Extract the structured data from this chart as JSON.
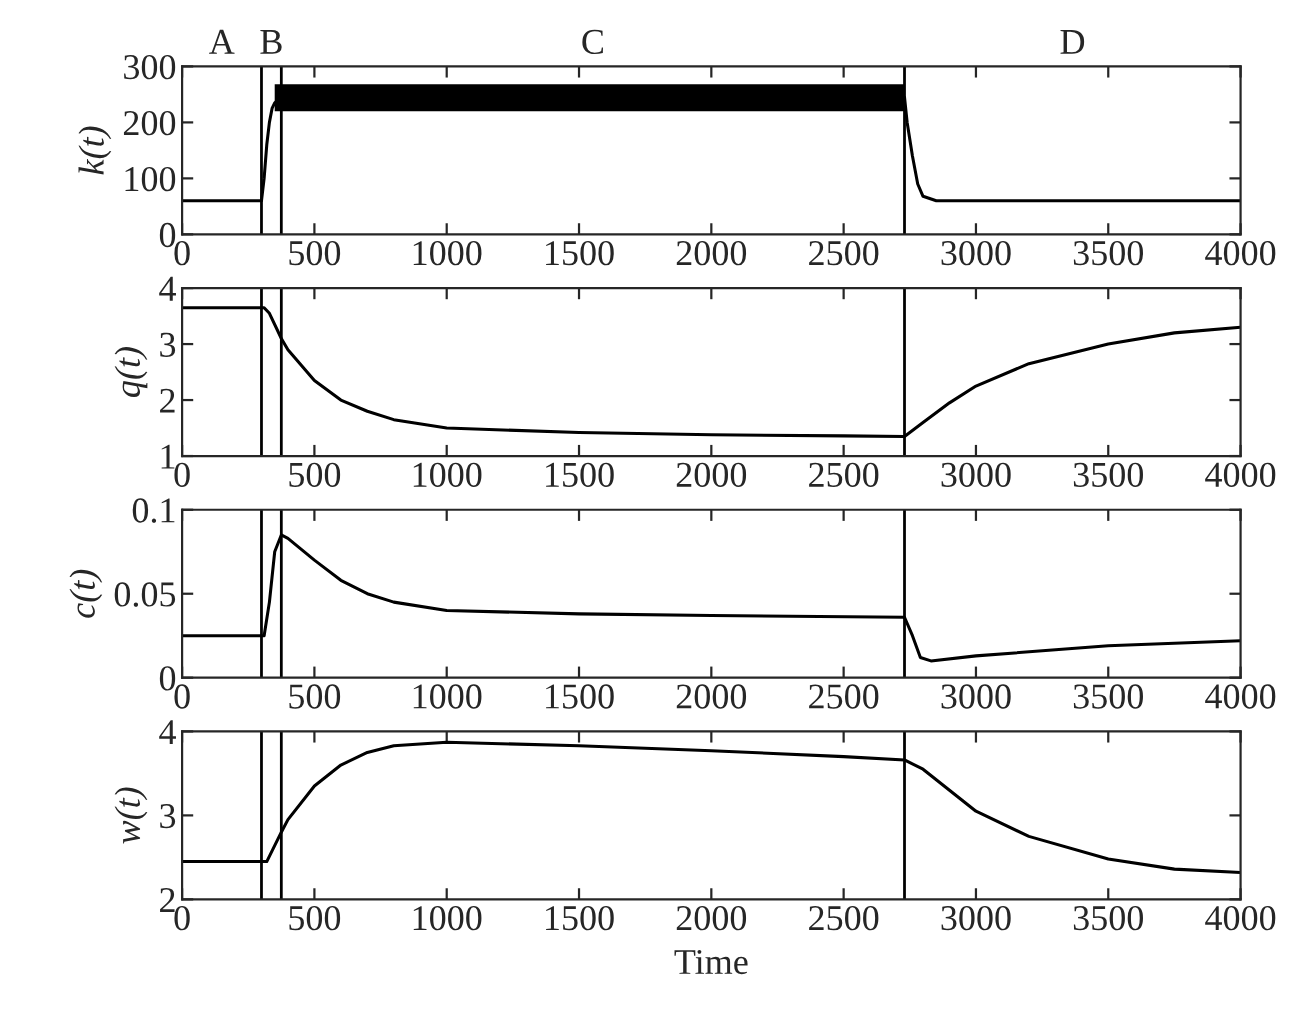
{
  "chart_data": [
    {
      "type": "line",
      "ylabel": "k(t)",
      "annotations": [
        "A",
        "B",
        "C",
        "D"
      ],
      "series": [
        {
          "color": "#000000",
          "x": [
            0,
            300,
            310,
            320,
            330,
            340,
            350,
            375,
            500,
            1000,
            1500,
            2000,
            2500,
            2720,
            2730,
            2740,
            2760,
            2780,
            2800,
            2850,
            3000,
            4000
          ],
          "values": [
            60,
            60,
            100,
            160,
            200,
            225,
            235,
            245,
            245,
            245,
            245,
            245,
            245,
            245,
            245,
            200,
            140,
            90,
            68,
            60,
            60,
            60
          ],
          "lower": [
            null,
            null,
            null,
            null,
            null,
            null,
            220,
            220,
            220,
            220,
            220,
            220,
            220,
            220,
            220,
            null,
            null,
            null,
            null,
            null,
            null,
            null
          ],
          "upper": [
            null,
            null,
            null,
            null,
            null,
            null,
            268,
            268,
            268,
            268,
            268,
            268,
            268,
            268,
            268,
            null,
            null,
            null,
            null,
            null,
            null,
            null
          ]
        }
      ],
      "xlim": [
        0,
        4000
      ],
      "xticks": [
        0,
        500,
        1000,
        1500,
        2000,
        2500,
        3000,
        3500,
        4000
      ],
      "ylim": [
        0,
        300
      ],
      "yticks": [
        0,
        100,
        200,
        300
      ],
      "ref_lines": [
        {
          "axis": "x",
          "value": 300
        },
        {
          "axis": "x",
          "value": 375
        },
        {
          "axis": "x",
          "value": 2730
        }
      ]
    },
    {
      "type": "line",
      "ylabel": "q(t)",
      "series": [
        {
          "color": "#000000",
          "x": [
            0,
            310,
            330,
            375,
            400,
            500,
            600,
            700,
            800,
            1000,
            1500,
            2000,
            2500,
            2730,
            2800,
            2900,
            3000,
            3200,
            3500,
            3750,
            4000
          ],
          "values": [
            3.65,
            3.65,
            3.55,
            3.1,
            2.9,
            2.35,
            2.0,
            1.8,
            1.65,
            1.5,
            1.42,
            1.38,
            1.36,
            1.35,
            1.6,
            1.95,
            2.25,
            2.65,
            3.0,
            3.2,
            3.3
          ]
        }
      ],
      "xlim": [
        0,
        4000
      ],
      "xticks": [
        0,
        500,
        1000,
        1500,
        2000,
        2500,
        3000,
        3500,
        4000
      ],
      "ylim": [
        1,
        4
      ],
      "yticks": [
        1,
        2,
        3,
        4
      ],
      "ref_lines": [
        {
          "axis": "x",
          "value": 300
        },
        {
          "axis": "x",
          "value": 375
        },
        {
          "axis": "x",
          "value": 2730
        }
      ]
    },
    {
      "type": "line",
      "ylabel": "c(t)",
      "series": [
        {
          "color": "#000000",
          "x": [
            0,
            310,
            330,
            350,
            375,
            400,
            500,
            600,
            700,
            800,
            1000,
            1500,
            2000,
            2730,
            2760,
            2790,
            2830,
            3000,
            3500,
            4000
          ],
          "values": [
            0.025,
            0.025,
            0.045,
            0.075,
            0.085,
            0.083,
            0.07,
            0.058,
            0.05,
            0.045,
            0.04,
            0.038,
            0.037,
            0.036,
            0.025,
            0.012,
            0.01,
            0.013,
            0.019,
            0.022
          ]
        }
      ],
      "xlim": [
        0,
        4000
      ],
      "xticks": [
        0,
        500,
        1000,
        1500,
        2000,
        2500,
        3000,
        3500,
        4000
      ],
      "ylim": [
        0,
        0.1
      ],
      "yticks": [
        0,
        0.05,
        0.1
      ],
      "ref_lines": [
        {
          "axis": "x",
          "value": 300
        },
        {
          "axis": "x",
          "value": 375
        },
        {
          "axis": "x",
          "value": 2730
        }
      ]
    },
    {
      "type": "line",
      "ylabel": "w(t)",
      "xlabel": "Time",
      "series": [
        {
          "color": "#000000",
          "x": [
            0,
            320,
            375,
            400,
            500,
            600,
            700,
            800,
            1000,
            1500,
            2000,
            2500,
            2730,
            2800,
            3000,
            3200,
            3500,
            3750,
            4000
          ],
          "values": [
            2.45,
            2.45,
            2.8,
            2.95,
            3.35,
            3.6,
            3.75,
            3.83,
            3.87,
            3.83,
            3.77,
            3.7,
            3.66,
            3.55,
            3.05,
            2.75,
            2.48,
            2.36,
            2.32
          ]
        }
      ],
      "xlim": [
        0,
        4000
      ],
      "xticks": [
        0,
        500,
        1000,
        1500,
        2000,
        2500,
        3000,
        3500,
        4000
      ],
      "ylim": [
        2,
        4
      ],
      "yticks": [
        2,
        3,
        4
      ],
      "ref_lines": [
        {
          "axis": "x",
          "value": 300
        },
        {
          "axis": "x",
          "value": 375
        },
        {
          "axis": "x",
          "value": 2730
        }
      ]
    }
  ]
}
